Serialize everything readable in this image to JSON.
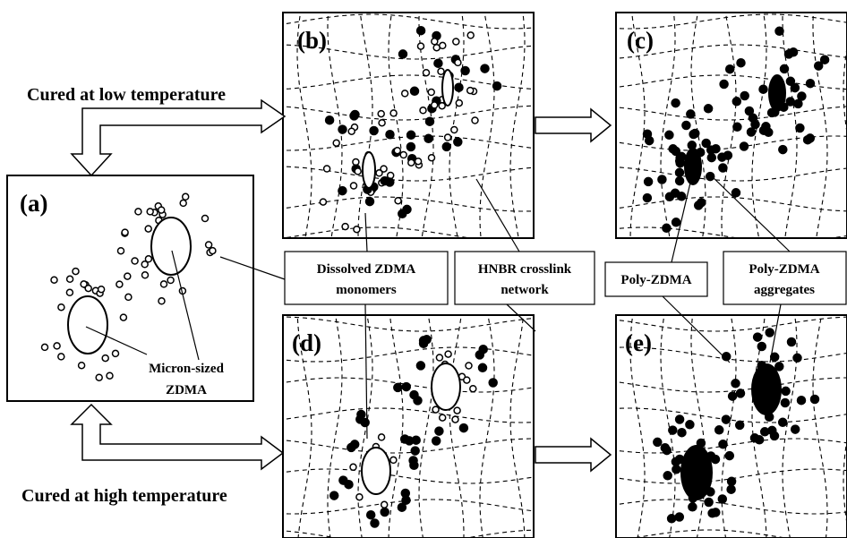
{
  "panels": [
    {
      "label": "(a)"
    },
    {
      "label": "(b)"
    },
    {
      "label": "(c)"
    },
    {
      "label": "(d)"
    },
    {
      "label": "(e)"
    }
  ],
  "arrows": {
    "low": "Cured at low temperature",
    "high": "Cured at high temperature"
  },
  "annotations": {
    "micron": [
      "Micron-sized",
      "ZDMA"
    ],
    "dissolved": [
      "Dissolved ZDMA",
      "monomers"
    ],
    "hnbr": [
      "HNBR crosslink",
      "network"
    ],
    "poly": "Poly-ZDMA",
    "aggregates": [
      "Poly-ZDMA",
      "aggregates"
    ]
  }
}
